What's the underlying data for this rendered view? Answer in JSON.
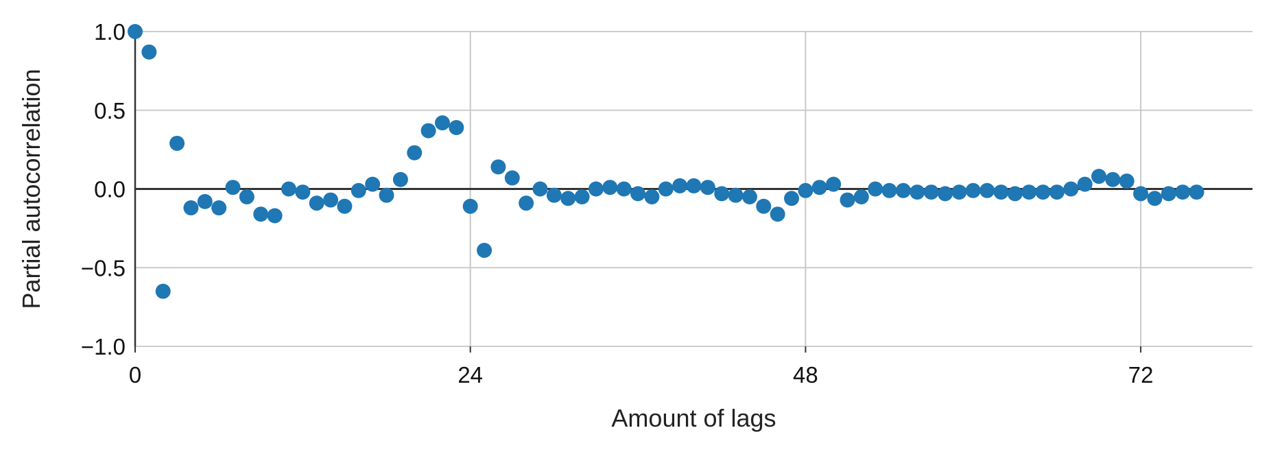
{
  "chart_data": {
    "type": "scatter",
    "title": "",
    "xlabel": "Amount of lags",
    "ylabel": "Partial autocorrelation",
    "xlim": [
      0,
      80
    ],
    "ylim": [
      -1.0,
      1.0
    ],
    "x_ticks": [
      0,
      24,
      48,
      72
    ],
    "x_tick_labels": [
      "0",
      "24",
      "48",
      "72"
    ],
    "y_ticks": [
      1.0,
      0.5,
      0.0,
      -0.5,
      -1.0
    ],
    "y_tick_labels": [
      "1.0",
      "0.5",
      "0.0",
      "−0.5",
      "−1.0"
    ],
    "grid": true,
    "legend": "none",
    "point_color": "#1f77b4",
    "zero_line_color": "#333333",
    "x": [
      0,
      1,
      2,
      3,
      4,
      5,
      6,
      7,
      8,
      9,
      10,
      11,
      12,
      13,
      14,
      15,
      16,
      17,
      18,
      19,
      20,
      21,
      22,
      23,
      24,
      25,
      26,
      27,
      28,
      29,
      30,
      31,
      32,
      33,
      34,
      35,
      36,
      37,
      38,
      39,
      40,
      41,
      42,
      43,
      44,
      45,
      46,
      47,
      48,
      49,
      50,
      51,
      52,
      53,
      54,
      55,
      56,
      57,
      58,
      59,
      60,
      61,
      62,
      63,
      64,
      65,
      66,
      67,
      68,
      69,
      70,
      71,
      72,
      73,
      74,
      75,
      76
    ],
    "y": [
      1.0,
      0.87,
      -0.65,
      0.29,
      -0.12,
      -0.08,
      -0.12,
      0.01,
      -0.05,
      -0.16,
      -0.17,
      0.0,
      -0.02,
      -0.09,
      -0.07,
      -0.11,
      -0.01,
      0.03,
      -0.04,
      0.06,
      0.23,
      0.37,
      0.42,
      0.39,
      -0.11,
      -0.39,
      0.14,
      0.07,
      -0.09,
      0.0,
      -0.04,
      -0.06,
      -0.05,
      0.0,
      0.01,
      0.0,
      -0.03,
      -0.05,
      0.0,
      0.02,
      0.02,
      0.01,
      -0.03,
      -0.04,
      -0.05,
      -0.11,
      -0.16,
      -0.06,
      -0.01,
      0.01,
      0.03,
      -0.07,
      -0.05,
      0.0,
      -0.01,
      -0.01,
      -0.02,
      -0.02,
      -0.03,
      -0.02,
      -0.01,
      -0.01,
      -0.02,
      -0.03,
      -0.02,
      -0.02,
      -0.02,
      0.0,
      0.03,
      0.08,
      0.06,
      0.05,
      -0.03,
      -0.06,
      -0.03,
      -0.02,
      -0.02
    ]
  }
}
